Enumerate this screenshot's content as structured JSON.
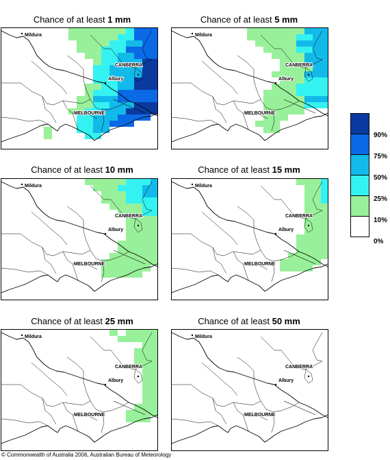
{
  "panels": [
    {
      "prefix": "Chance of at least ",
      "amount": "1 mm"
    },
    {
      "prefix": "Chance of at least ",
      "amount": "5 mm"
    },
    {
      "prefix": "Chance of at least ",
      "amount": "10 mm"
    },
    {
      "prefix": "Chance of at least ",
      "amount": "15 mm"
    },
    {
      "prefix": "Chance of at least ",
      "amount": "25 mm"
    },
    {
      "prefix": "Chance of at least ",
      "amount": "50 mm"
    }
  ],
  "places": {
    "mildura": "Mildura",
    "canberra": "CANBERRA",
    "albury": "Albury",
    "melbourne": "MELBOURNE"
  },
  "legend": {
    "labels": [
      "90%",
      "75%",
      "50%",
      "25%",
      "10%",
      "0%"
    ],
    "colors": [
      "#0a3aa0",
      "#0a6ae6",
      "#12baea",
      "#35f2f2",
      "#99f09a",
      "#ffffff"
    ]
  },
  "copyright": "© Commonwealth of Australia 2006, Australian Bureau of Meteorology"
}
